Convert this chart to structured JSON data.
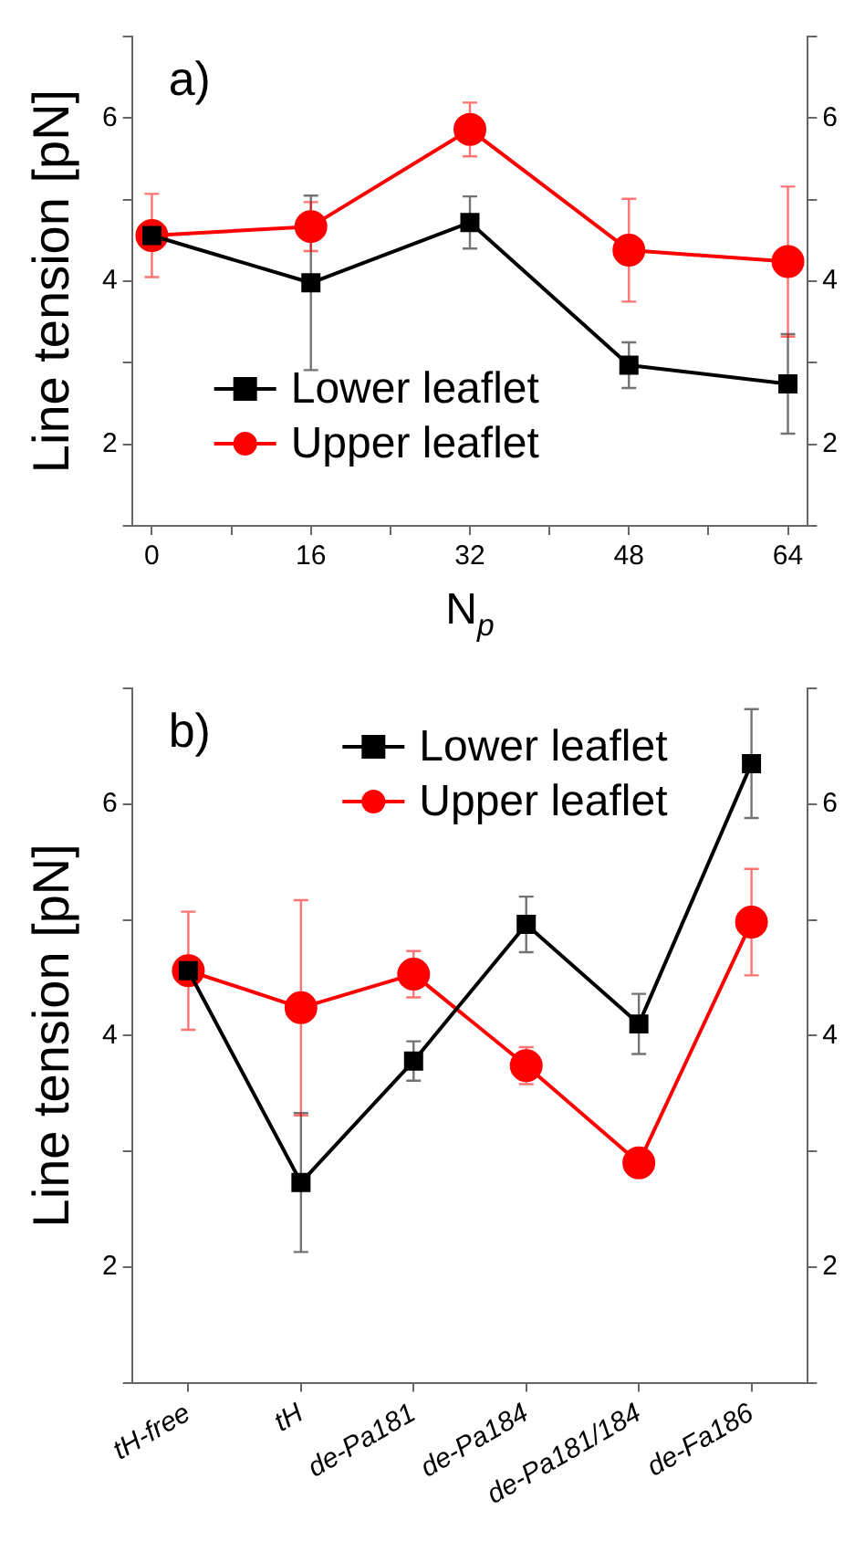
{
  "chart_data": [
    {
      "type": "line",
      "xlabel": "N$_{p}$",
      "ylabel": "Line tension [pN]",
      "annotations": [
        "a)"
      ],
      "legend": "bottom left",
      "grid": false,
      "line_style": "solid",
      "x": [
        0,
        16,
        32,
        48,
        64
      ],
      "xlim": [
        -2,
        66
      ],
      "xticks": [
        0,
        {
          "value": 8,
          "label": null
        },
        16,
        {
          "value": 24,
          "label": null
        },
        32,
        {
          "value": 40,
          "label": null
        },
        48,
        {
          "value": 56,
          "label": null
        },
        64
      ],
      "ylim": [
        1,
        7
      ],
      "yticks": [
        {
          "value": 1,
          "label": null
        },
        2,
        {
          "value": 3,
          "label": null
        },
        4,
        {
          "value": 5,
          "label": null
        },
        6,
        {
          "value": 7,
          "label": null
        }
      ],
      "y2lim": [
        1,
        7
      ],
      "y2ticks": [
        {
          "value": 1,
          "label": null
        },
        2,
        {
          "value": 3,
          "label": null
        },
        4,
        {
          "value": 5,
          "label": null
        },
        6,
        {
          "value": 7,
          "label": null
        }
      ],
      "series": [
        {
          "name": "Lower leaflet",
          "color": "#000000",
          "marker": "square",
          "values": [
            4.56,
            3.98,
            4.72,
            2.97,
            2.74
          ],
          "errors": [
            null,
            1.07,
            0.32,
            0.28,
            0.61
          ]
        },
        {
          "name": "Upper leaflet",
          "color": "#ff0000",
          "marker": "circle",
          "values": [
            4.56,
            4.67,
            5.86,
            4.38,
            4.24
          ],
          "errors": [
            0.51,
            0.3,
            0.33,
            0.63,
            0.92
          ]
        }
      ]
    },
    {
      "type": "line",
      "ylabel": "Line tension [pN]",
      "annotations": [
        "b)"
      ],
      "legend": "top right",
      "grid": false,
      "line_style": "solid",
      "categories": [
        "tH-free",
        "tH",
        "de-Pa181",
        "de-Pa184",
        "de-Pa181/184",
        "de-Fa186"
      ],
      "ylim": [
        1,
        7
      ],
      "yticks": [
        {
          "value": 1,
          "label": null
        },
        2,
        {
          "value": 3,
          "label": null
        },
        4,
        {
          "value": 5,
          "label": null
        },
        6,
        {
          "value": 7,
          "label": null
        }
      ],
      "y2lim": [
        1,
        7
      ],
      "y2ticks": [
        {
          "value": 1,
          "label": null
        },
        2,
        {
          "value": 3,
          "label": null
        },
        4,
        {
          "value": 5,
          "label": null
        },
        6,
        {
          "value": 7,
          "label": null
        }
      ],
      "series": [
        {
          "name": "Lower leaflet",
          "color": "#000000",
          "marker": "square",
          "values": [
            4.56,
            2.73,
            3.78,
            4.96,
            4.1,
            6.35
          ],
          "errors": [
            null,
            0.6,
            0.17,
            0.24,
            0.26,
            0.47
          ]
        },
        {
          "name": "Upper leaflet",
          "color": "#ff0000",
          "marker": "circle",
          "values": [
            4.56,
            4.24,
            4.53,
            3.74,
            2.9,
            4.98
          ],
          "errors": [
            0.51,
            0.93,
            0.2,
            0.16,
            null,
            0.46
          ]
        }
      ]
    }
  ]
}
